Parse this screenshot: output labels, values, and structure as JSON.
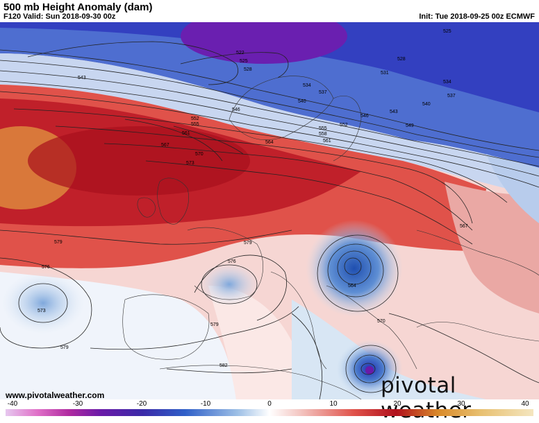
{
  "header": {
    "title": "500 mb Height Anomaly (dam)",
    "valid": "F120 Valid: Sun 2018-09-30 00z",
    "init": "Init: Tue 2018-09-25 00z ECMWF"
  },
  "footer": {
    "website": "www.pivotalweather.com",
    "brand": "pivotal weather"
  },
  "colorbar": {
    "ticks": [
      "-40",
      "-30",
      "-20",
      "-10",
      "0",
      "10",
      "20",
      "30",
      "40"
    ]
  },
  "contour_labels": [
    "522",
    "525",
    "528",
    "543",
    "531",
    "534",
    "537",
    "540",
    "546",
    "549",
    "552",
    "555",
    "558",
    "561",
    "564",
    "567",
    "570",
    "573",
    "576",
    "579",
    "582"
  ],
  "map_labels": [
    {
      "id": "l522",
      "text": "522"
    },
    {
      "id": "l525a",
      "text": "525"
    },
    {
      "id": "l528a",
      "text": "528"
    },
    {
      "id": "l525b",
      "text": "525"
    },
    {
      "id": "l528b",
      "text": "528"
    },
    {
      "id": "l531",
      "text": "531"
    },
    {
      "id": "l534a",
      "text": "534"
    },
    {
      "id": "l534b",
      "text": "534"
    },
    {
      "id": "l537a",
      "text": "537"
    },
    {
      "id": "l537b",
      "text": "537"
    },
    {
      "id": "l540a",
      "text": "540"
    },
    {
      "id": "l540b",
      "text": "540"
    },
    {
      "id": "l543a",
      "text": "543"
    },
    {
      "id": "l543b",
      "text": "543"
    },
    {
      "id": "l546a",
      "text": "546"
    },
    {
      "id": "l546b",
      "text": "546"
    },
    {
      "id": "l549",
      "text": "549"
    },
    {
      "id": "l552a",
      "text": "552"
    },
    {
      "id": "l552b",
      "text": "552"
    },
    {
      "id": "l555a",
      "text": "555"
    },
    {
      "id": "l555b",
      "text": "555"
    },
    {
      "id": "l558",
      "text": "558"
    },
    {
      "id": "l561a",
      "text": "561"
    },
    {
      "id": "l561b",
      "text": "561"
    },
    {
      "id": "l564a",
      "text": "564"
    },
    {
      "id": "l564b",
      "text": "564"
    },
    {
      "id": "l567a",
      "text": "567"
    },
    {
      "id": "l567b",
      "text": "567"
    },
    {
      "id": "l570a",
      "text": "570"
    },
    {
      "id": "l570b",
      "text": "570"
    },
    {
      "id": "l573a",
      "text": "573"
    },
    {
      "id": "l573b",
      "text": "573"
    },
    {
      "id": "l576a",
      "text": "576"
    },
    {
      "id": "l576b",
      "text": "576"
    },
    {
      "id": "l579a",
      "text": "579"
    },
    {
      "id": "l579b",
      "text": "579"
    },
    {
      "id": "l579c",
      "text": "579"
    },
    {
      "id": "l579d",
      "text": "579"
    },
    {
      "id": "l582",
      "text": "582"
    }
  ],
  "colors": {
    "strong_negative": "#3a2aa8",
    "negative": "#2f5fc8",
    "weak_negative": "#c9dcef",
    "neutral": "#ffffff",
    "weak_positive": "#f3c4c0",
    "positive": "#e0524a",
    "strong_positive": "#b0101c",
    "extreme_positive": "#d98a2a"
  }
}
